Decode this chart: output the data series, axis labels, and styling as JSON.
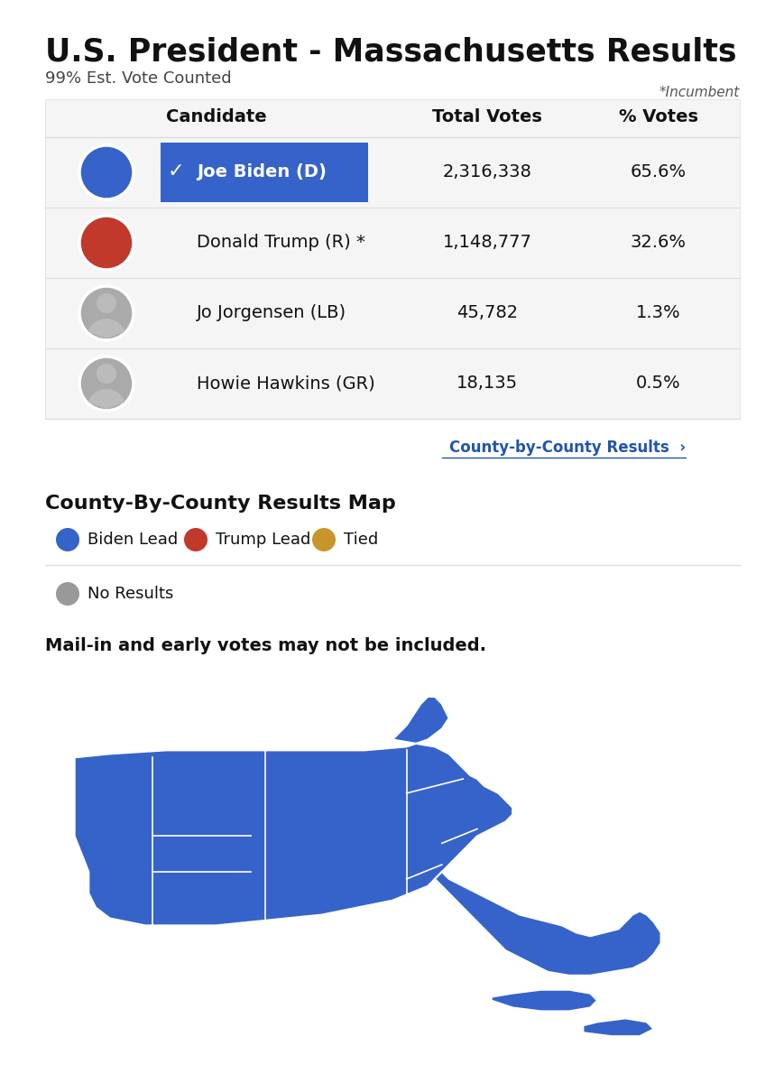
{
  "title": "U.S. President - Massachusetts Results",
  "subtitle": "99% Est. Vote Counted",
  "incumbent_label": "*Incumbent",
  "col_headers": [
    "Candidate",
    "Total Votes",
    "% Votes"
  ],
  "candidates": [
    {
      "name": "Joe Biden (D)",
      "votes": "2,316,338",
      "pct": "65.6%",
      "winner": true,
      "party": "D"
    },
    {
      "name": "Donald Trump (R) *",
      "votes": "1,148,777",
      "pct": "32.6%",
      "winner": false,
      "party": "R"
    },
    {
      "name": "Jo Jorgensen (LB)",
      "votes": "45,782",
      "pct": "1.3%",
      "winner": false,
      "party": "LB"
    },
    {
      "name": "Howie Hawkins (GR)",
      "votes": "18,135",
      "pct": "0.5%",
      "winner": false,
      "party": "GR"
    }
  ],
  "county_results_link": "County-by-County Results  ›",
  "map_title": "County-By-County Results Map",
  "legend_items": [
    {
      "label": "Biden Lead",
      "color": "#3563C9"
    },
    {
      "label": "Trump Lead",
      "color": "#C0392B"
    },
    {
      "label": "Tied",
      "color": "#C8952A"
    }
  ],
  "no_results_label": "No Results",
  "no_results_color": "#999999",
  "mail_in_notice": "Mail-in and early votes may not be included.",
  "bg_color": "#FFFFFF",
  "table_bg": "#F5F5F5",
  "winner_bg": "#3563C9",
  "winner_text": "#FFFFFF",
  "table_border": "#DDDDDD",
  "biden_circle_color": "#3563C9",
  "trump_circle_color": "#C0392B",
  "gray_circle_color": "#AAAAAA",
  "map_fill_color": "#3563C9",
  "map_line_color": "#FFFFFF"
}
